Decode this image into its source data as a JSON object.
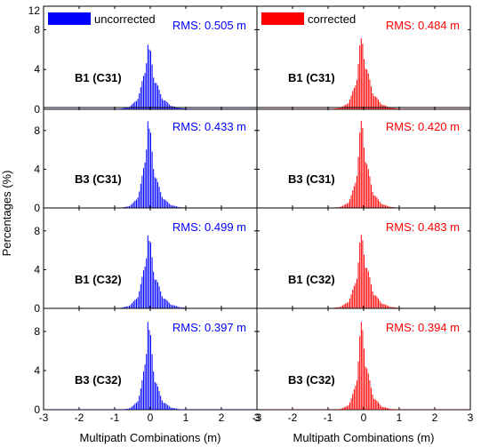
{
  "chart_data": {
    "type": "bar",
    "ylabel": "Percentages (%)",
    "xlabel": "Multipath Combinations (m)",
    "xlim": [
      -3,
      3
    ],
    "x_ticks": [
      -3,
      -2,
      -1,
      0,
      1,
      2,
      3
    ],
    "x_tick_labels": [
      "-3",
      "-2",
      "-1",
      "0",
      "1",
      "2",
      "3"
    ],
    "y_ticks": [
      0,
      4,
      8
    ],
    "y_top_tick": 12,
    "ylim_panel": [
      0,
      10
    ],
    "grid": false,
    "columns": [
      {
        "series": "uncorrected",
        "color": "#0000ff",
        "panels": [
          {
            "label": "B1 (C31)",
            "rms": "RMS: 0.505 m",
            "rms_value": 0.505,
            "peak": 6.9,
            "x_peak": -0.05
          },
          {
            "label": "B3 (C31)",
            "rms": "RMS: 0.433 m",
            "rms_value": 0.433,
            "peak": 9.6,
            "x_peak": -0.05
          },
          {
            "label": "B1 (C32)",
            "rms": "RMS: 0.499 m",
            "rms_value": 0.499,
            "peak": 8.0,
            "x_peak": -0.05
          },
          {
            "label": "B3 (C32)",
            "rms": "RMS: 0.397 m",
            "rms_value": 0.397,
            "peak": 9.7,
            "x_peak": -0.05
          }
        ]
      },
      {
        "series": "corrected",
        "color": "#ff0000",
        "panels": [
          {
            "label": "B1 (C31)",
            "rms": "RMS: 0.484 m",
            "rms_value": 0.484,
            "peak": 7.6,
            "x_peak": -0.05
          },
          {
            "label": "B3 (C31)",
            "rms": "RMS: 0.420 m",
            "rms_value": 0.42,
            "peak": 9.7,
            "x_peak": -0.05
          },
          {
            "label": "B1 (C32)",
            "rms": "RMS: 0.483 m",
            "rms_value": 0.483,
            "peak": 8.1,
            "x_peak": -0.05
          },
          {
            "label": "B3 (C32)",
            "rms": "RMS: 0.394 m",
            "rms_value": 0.394,
            "peak": 9.7,
            "x_peak": -0.05
          }
        ]
      }
    ]
  }
}
